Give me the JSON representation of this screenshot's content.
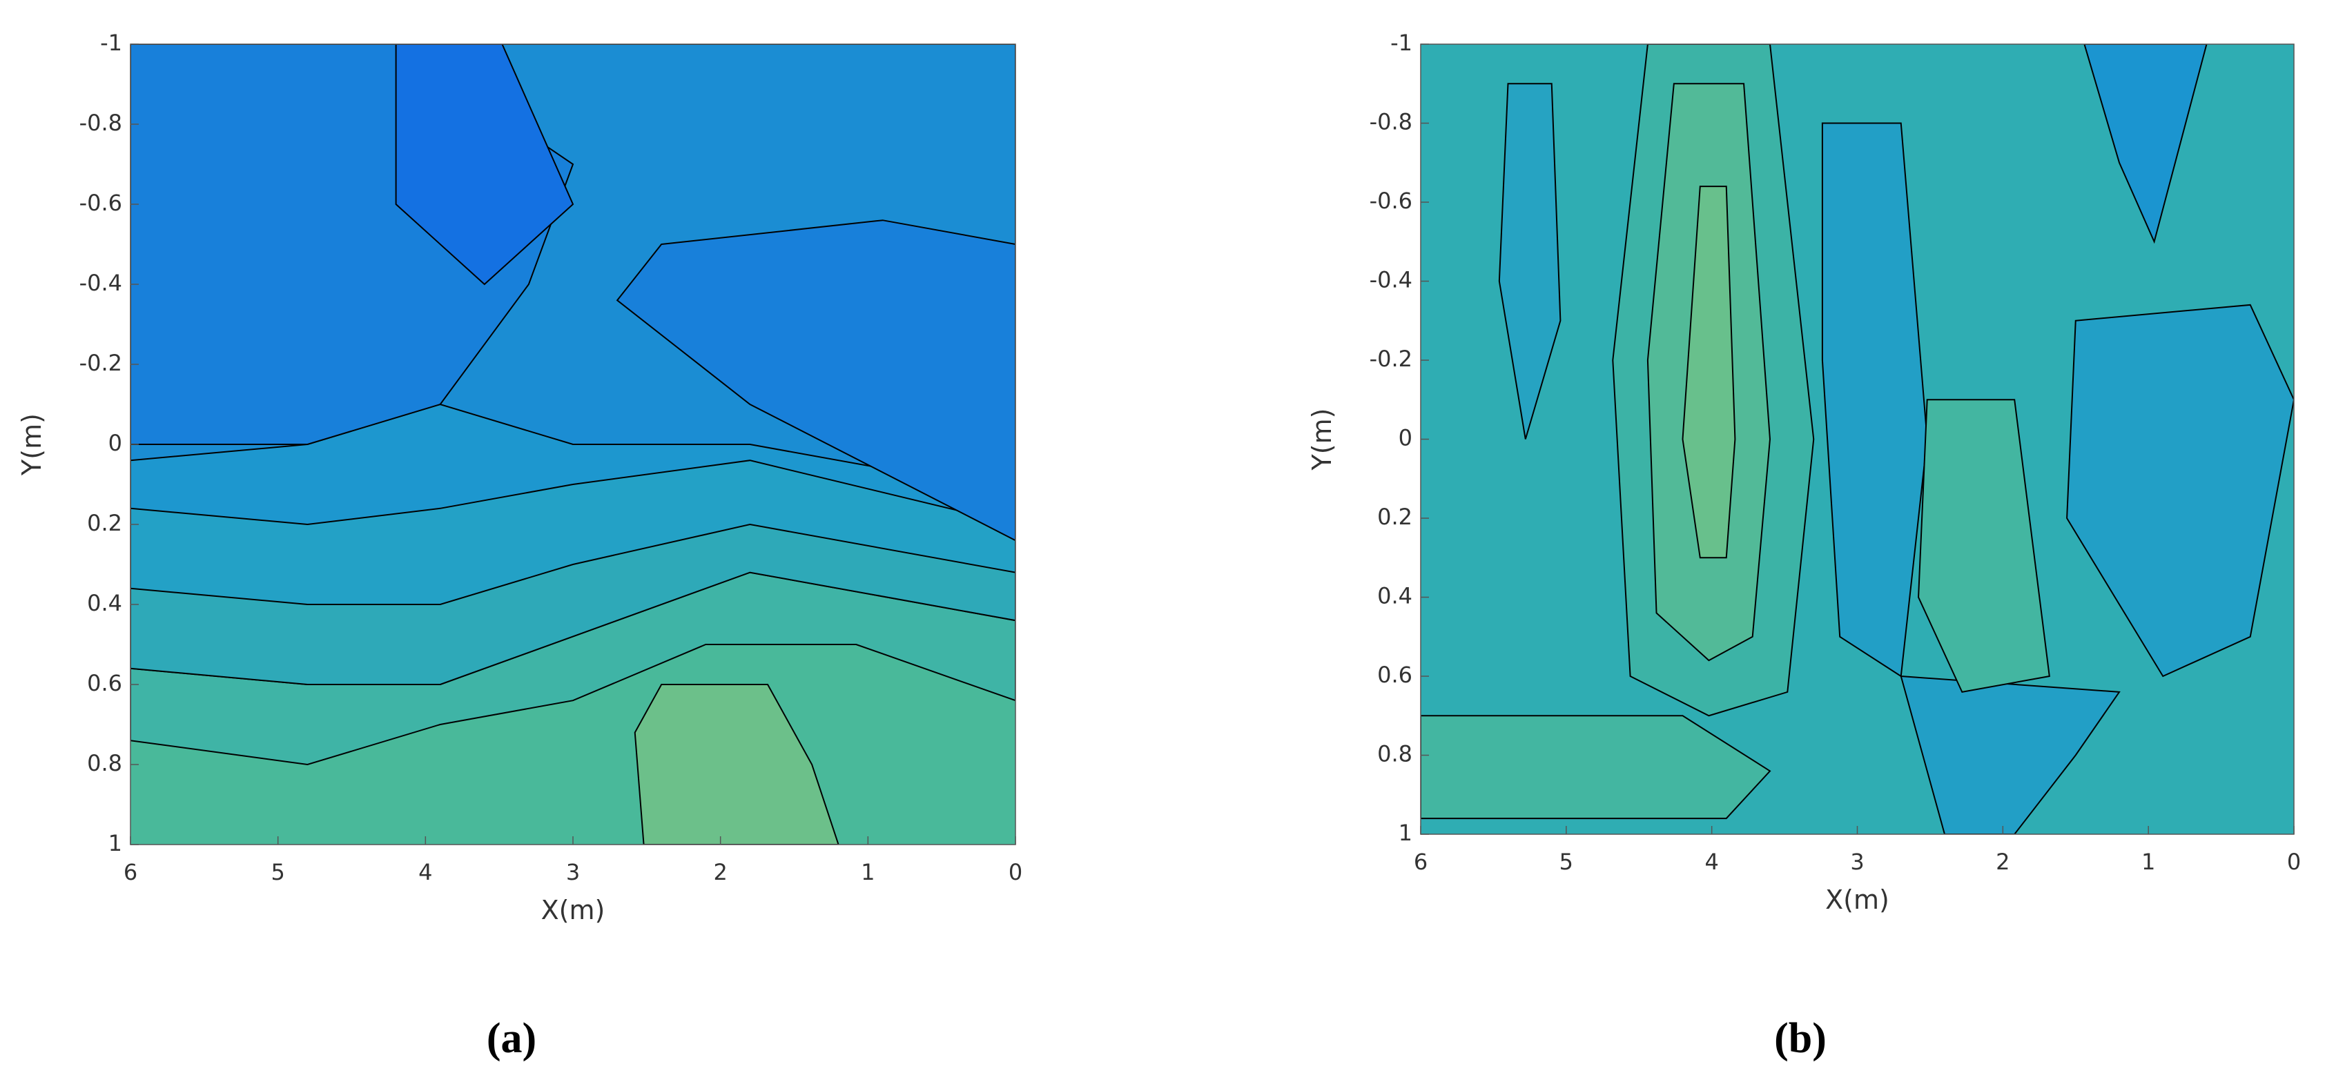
{
  "chart_data": [
    {
      "type": "contour",
      "caption": "(a)",
      "xlabel": "X(m)",
      "ylabel": "Y(m)",
      "xlim": [
        6,
        0
      ],
      "xticks": [
        6,
        5,
        4,
        3,
        2,
        1,
        0
      ],
      "ylim": [
        -1,
        1
      ],
      "yticks": [
        -1,
        -0.8,
        -0.6,
        -0.4,
        -0.2,
        0,
        0.2,
        0.4,
        0.6,
        0.8,
        1
      ]
    },
    {
      "type": "contour",
      "caption": "(b)",
      "xlabel": "X(m)",
      "ylabel": "Y(m)",
      "xlim": [
        6,
        0
      ],
      "xticks": [
        6,
        5,
        4,
        3,
        2,
        1,
        0
      ],
      "ylim": [
        -1,
        1
      ],
      "yticks": [
        -1,
        -0.8,
        -0.6,
        -0.4,
        -0.2,
        0,
        0.2,
        0.4,
        0.6,
        0.8,
        1
      ]
    }
  ]
}
